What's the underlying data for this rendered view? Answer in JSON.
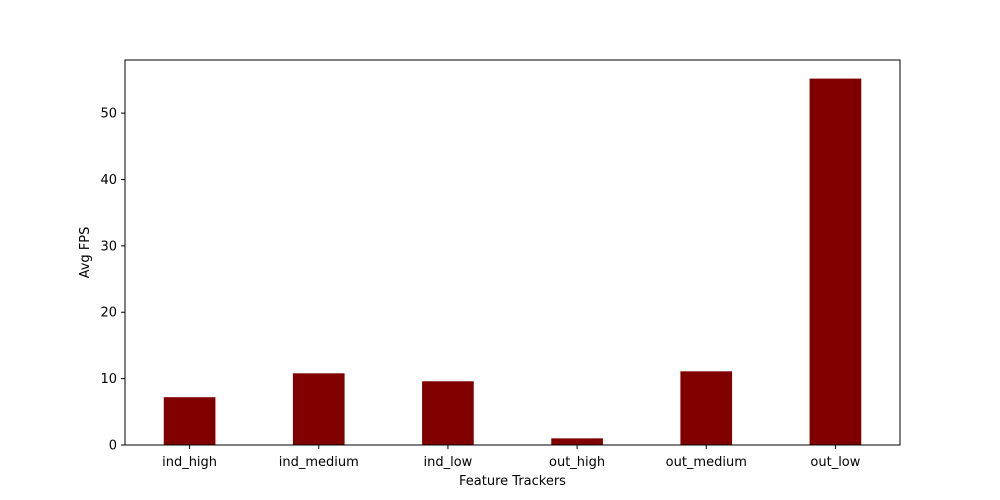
{
  "chart_data": {
    "type": "bar",
    "title": "",
    "xlabel": "Feature Trackers",
    "ylabel": "Avg FPS",
    "categories": [
      "ind_high",
      "ind_medium",
      "ind_low",
      "out_high",
      "out_medium",
      "out_low"
    ],
    "values": [
      7.2,
      10.8,
      9.6,
      1.0,
      11.1,
      55.2
    ],
    "ylim": [
      0,
      58.0
    ],
    "yticks": [
      0,
      10,
      20,
      30,
      40,
      50
    ],
    "grid": false,
    "bar_color": "#800000"
  }
}
